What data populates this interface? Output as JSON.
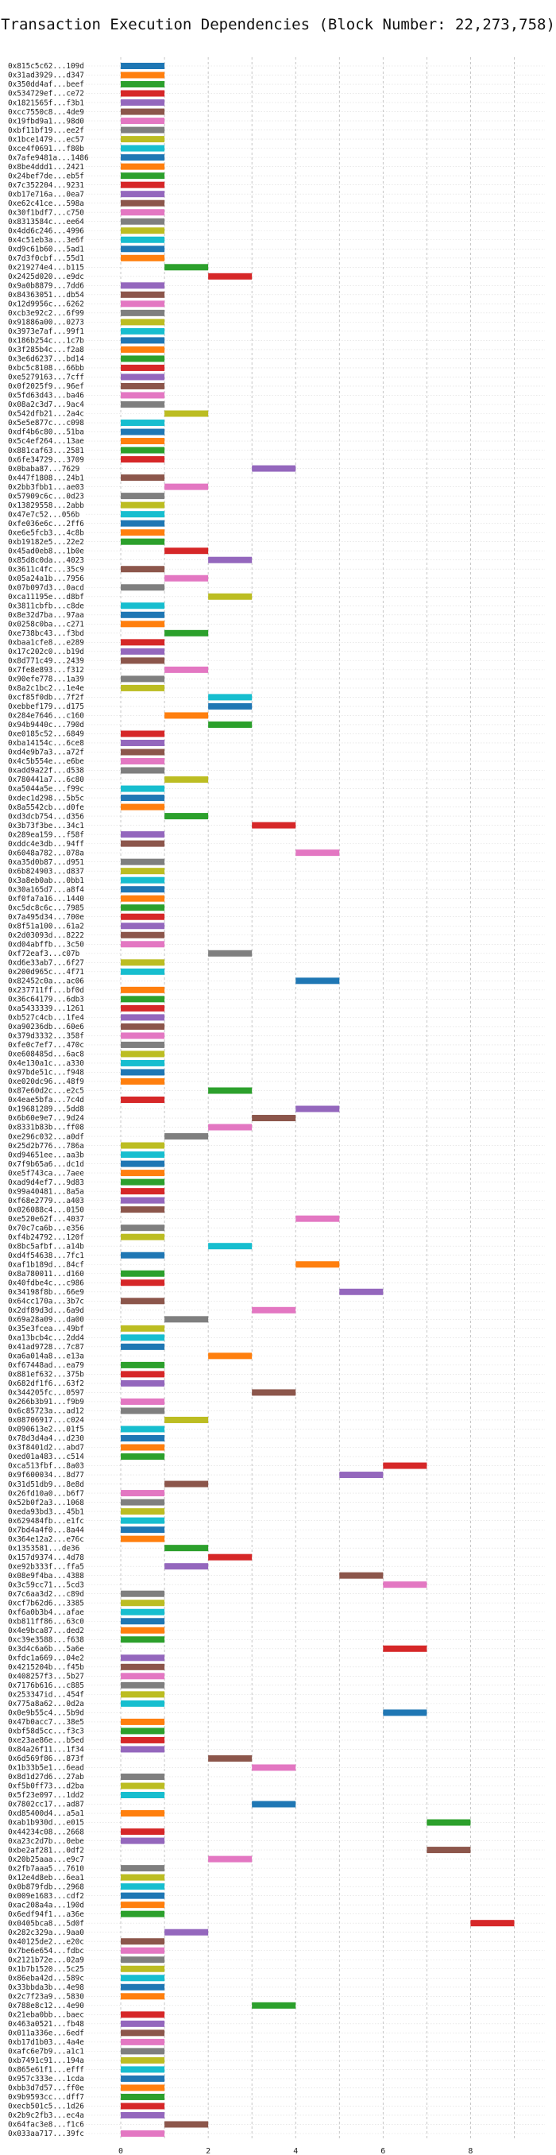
{
  "chart_data": {
    "type": "bar",
    "orientation": "horizontal",
    "title": "Transaction Execution Dependencies (Block Number: 22,273,758)",
    "xlabel": "",
    "ylabel": "",
    "xlim": [
      -0.8,
      9.7
    ],
    "xticks": [
      0,
      2,
      4,
      6,
      8
    ],
    "grid": true,
    "bar_span": 1,
    "palette": [
      "#1f77b4",
      "#ff7f0e",
      "#2ca02c",
      "#d62728",
      "#9467bd",
      "#8c564b",
      "#e377c2",
      "#7f7f7f",
      "#bcbd22",
      "#17becf"
    ],
    "transactions": [
      {
        "label": "0x815c5c62...109d",
        "start": 0
      },
      {
        "label": "0x31ad3929...d347",
        "start": 0
      },
      {
        "label": "0x350dd4af...beef",
        "start": 0
      },
      {
        "label": "0x534729ef...ce72",
        "start": 0
      },
      {
        "label": "0x1821565f...f3b1",
        "start": 0
      },
      {
        "label": "0xcc7550c8...4de9",
        "start": 0
      },
      {
        "label": "0x19fbd9a1...98d0",
        "start": 0
      },
      {
        "label": "0xbf11bf19...ee2f",
        "start": 0
      },
      {
        "label": "0x1bce1479...ec57",
        "start": 0
      },
      {
        "label": "0xce4f0691...f80b",
        "start": 0
      },
      {
        "label": "0x7afe9481a...1486",
        "start": 0
      },
      {
        "label": "0x8be4ddd1...2421",
        "start": 0
      },
      {
        "label": "0x24bef7de...eb5f",
        "start": 0
      },
      {
        "label": "0x7c352204...9231",
        "start": 0
      },
      {
        "label": "0xb17e716a...0ea7",
        "start": 0
      },
      {
        "label": "0xe62c41ce...598a",
        "start": 0
      },
      {
        "label": "0x30f1bdf7...c750",
        "start": 0
      },
      {
        "label": "0x8313584c...ee64",
        "start": 0
      },
      {
        "label": "0x4dd6c246...4996",
        "start": 0
      },
      {
        "label": "0x4c51eb3a...3e6f",
        "start": 0
      },
      {
        "label": "0xd9c61b60...5ad1",
        "start": 0
      },
      {
        "label": "0x7d3f0cbf...55d1",
        "start": 0
      },
      {
        "label": "0x219274e4...b115",
        "start": 1
      },
      {
        "label": "0x2425d020...e9dc",
        "start": 2
      },
      {
        "label": "0x9a0b8879...7dd6",
        "start": 0
      },
      {
        "label": "0x84363051...db54",
        "start": 0
      },
      {
        "label": "0x12d9956c...6262",
        "start": 0
      },
      {
        "label": "0xcb3e92c2...6f99",
        "start": 0
      },
      {
        "label": "0x91886a00...0273",
        "start": 0
      },
      {
        "label": "0x3973e7af...99f1",
        "start": 0
      },
      {
        "label": "0x186b254c...1c7b",
        "start": 0
      },
      {
        "label": "0x3f285b4c...f2a8",
        "start": 0
      },
      {
        "label": "0x3e6d6237...bd14",
        "start": 0
      },
      {
        "label": "0xbc5c8108...66bb",
        "start": 0
      },
      {
        "label": "0xe5279163...7cff",
        "start": 0
      },
      {
        "label": "0x0f2025f9...96ef",
        "start": 0
      },
      {
        "label": "0x5fd63d43...ba46",
        "start": 0
      },
      {
        "label": "0x08a2c3d7...9ac4",
        "start": 0
      },
      {
        "label": "0x542dfb21...2a4c",
        "start": 1
      },
      {
        "label": "0x5e5e877c...c098",
        "start": 0
      },
      {
        "label": "0xdf4b6c80...51ba",
        "start": 0
      },
      {
        "label": "0x5c4ef264...13ae",
        "start": 0
      },
      {
        "label": "0x881caf63...2581",
        "start": 0
      },
      {
        "label": "0x6fe34729...3709",
        "start": 0
      },
      {
        "label": "0x0baba87...7629",
        "start": 3
      },
      {
        "label": "0x447f1808...24b1",
        "start": 0
      },
      {
        "label": "0x2bb3fbb1...ae03",
        "start": 1
      },
      {
        "label": "0x57909c6c...0d23",
        "start": 0
      },
      {
        "label": "0x13829558...2abb",
        "start": 0
      },
      {
        "label": "0x47e7c52...056b",
        "start": 0
      },
      {
        "label": "0xfe036e6c...2ff6",
        "start": 0
      },
      {
        "label": "0xe6e5fcb3...4c8b",
        "start": 0
      },
      {
        "label": "0xb19182e5...22e2",
        "start": 0
      },
      {
        "label": "0x45ad0eb8...1b0e",
        "start": 1
      },
      {
        "label": "0x85d8c0da...4023",
        "start": 2
      },
      {
        "label": "0x3611c4fc...35c9",
        "start": 0
      },
      {
        "label": "0x05a24a1b...7956",
        "start": 1
      },
      {
        "label": "0x07b097d3...0acd",
        "start": 0
      },
      {
        "label": "0xca11195e...d8bf",
        "start": 2
      },
      {
        "label": "0x3811cbfb...c8de",
        "start": 0
      },
      {
        "label": "0x8e32d7ba...97aa",
        "start": 0
      },
      {
        "label": "0x0258c0ba...c271",
        "start": 0
      },
      {
        "label": "0xe738bc43...f3bd",
        "start": 1
      },
      {
        "label": "0xbaa1cfe8...e289",
        "start": 0
      },
      {
        "label": "0x17c202c0...b19d",
        "start": 0
      },
      {
        "label": "0x8d771c49...2439",
        "start": 0
      },
      {
        "label": "0x7fe8e893...f312",
        "start": 1
      },
      {
        "label": "0x90efe778...1a39",
        "start": 0
      },
      {
        "label": "0x8a2c1bc2...1e4e",
        "start": 0
      },
      {
        "label": "0xcf85f0db...7f2f",
        "start": 2
      },
      {
        "label": "0xebbef179...d175",
        "start": 2
      },
      {
        "label": "0x284e7646...c160",
        "start": 1
      },
      {
        "label": "0x94b9440c...790d",
        "start": 2
      },
      {
        "label": "0xe0185c52...6849",
        "start": 0
      },
      {
        "label": "0xba14154c...6ce8",
        "start": 0
      },
      {
        "label": "0xd4e9b7a3...a72f",
        "start": 0
      },
      {
        "label": "0x4c5b554e...e6be",
        "start": 0
      },
      {
        "label": "0xadd9a22f...d538",
        "start": 0
      },
      {
        "label": "0x780441a7...6c80",
        "start": 1
      },
      {
        "label": "0xa5044a5e...f99c",
        "start": 0
      },
      {
        "label": "0xdec1d298...5b5c",
        "start": 0
      },
      {
        "label": "0x8a5542cb...d0fe",
        "start": 0
      },
      {
        "label": "0xd3dcb754...d356",
        "start": 1
      },
      {
        "label": "0x3b73f3be...34c1",
        "start": 3
      },
      {
        "label": "0x289ea159...f58f",
        "start": 0
      },
      {
        "label": "0xddc4e3db...94ff",
        "start": 0
      },
      {
        "label": "0x6048a782...078a",
        "start": 4
      },
      {
        "label": "0xa35d0b87...d951",
        "start": 0
      },
      {
        "label": "0x6b824903...d837",
        "start": 0
      },
      {
        "label": "0x3a8eb0ab...0bb1",
        "start": 0
      },
      {
        "label": "0x30a165d7...a8f4",
        "start": 0
      },
      {
        "label": "0xf0fa7a16...1440",
        "start": 0
      },
      {
        "label": "0xc5dc8c6c...7985",
        "start": 0
      },
      {
        "label": "0x7a495d34...700e",
        "start": 0
      },
      {
        "label": "0x8f51a100...61a2",
        "start": 0
      },
      {
        "label": "0x2d03093d...8222",
        "start": 0
      },
      {
        "label": "0xd04abffb...3c50",
        "start": 0
      },
      {
        "label": "0xf72eaf3...c07b",
        "start": 2
      },
      {
        "label": "0xd6e33ab7...6f27",
        "start": 0
      },
      {
        "label": "0x200d965c...4f71",
        "start": 0
      },
      {
        "label": "0x82452c0a...ac06",
        "start": 4
      },
      {
        "label": "0x237711ff...bf0d",
        "start": 0
      },
      {
        "label": "0x36c64179...6db3",
        "start": 0
      },
      {
        "label": "0xa5433339...1261",
        "start": 0
      },
      {
        "label": "0xb527c4cb...1fe4",
        "start": 0
      },
      {
        "label": "0xa90236db...60e6",
        "start": 0
      },
      {
        "label": "0x379d3332...358f",
        "start": 0
      },
      {
        "label": "0xfe0c7ef7...470c",
        "start": 0
      },
      {
        "label": "0xe608485d...6ac8",
        "start": 0
      },
      {
        "label": "0x4e130a1c...a330",
        "start": 0
      },
      {
        "label": "0x97bde51c...f948",
        "start": 0
      },
      {
        "label": "0xe020dc96...48f9",
        "start": 0
      },
      {
        "label": "0x87e60d2c...e2c5",
        "start": 2
      },
      {
        "label": "0x4eae5bfa...7c4d",
        "start": 0
      },
      {
        "label": "0x19681289...5dd8",
        "start": 4
      },
      {
        "label": "0x6b60e9e7...9d24",
        "start": 3
      },
      {
        "label": "0x8331b83b...ff08",
        "start": 2
      },
      {
        "label": "0xe296c032...a0df",
        "start": 1
      },
      {
        "label": "0x25d2b776...786a",
        "start": 0
      },
      {
        "label": "0xd94651ee...aa3b",
        "start": 0
      },
      {
        "label": "0x7f9b65a6...dc1d",
        "start": 0
      },
      {
        "label": "0xe5f743ca...7aee",
        "start": 0
      },
      {
        "label": "0xad9d4ef7...9d83",
        "start": 0
      },
      {
        "label": "0x99a40481...8a5a",
        "start": 0
      },
      {
        "label": "0xf68e2779...a403",
        "start": 0
      },
      {
        "label": "0x026088c4...0150",
        "start": 0
      },
      {
        "label": "0xe520e62f...4037",
        "start": 4
      },
      {
        "label": "0x70c7ca6b...e356",
        "start": 0
      },
      {
        "label": "0xf4b24792...120f",
        "start": 0
      },
      {
        "label": "0x8bc5afbf...a14b",
        "start": 2
      },
      {
        "label": "0xd4f54638...7fc1",
        "start": 0
      },
      {
        "label": "0xaf1b189d...84cf",
        "start": 4
      },
      {
        "label": "0x8a780011...d160",
        "start": 0
      },
      {
        "label": "0x40fdbe4c...c986",
        "start": 0
      },
      {
        "label": "0x34198f8b...66e9",
        "start": 5
      },
      {
        "label": "0x64cc170a...3b7c",
        "start": 0
      },
      {
        "label": "0x2df89d3d...6a9d",
        "start": 3
      },
      {
        "label": "0x69a28a09...da00",
        "start": 1
      },
      {
        "label": "0x35e3fcea...49bf",
        "start": 0
      },
      {
        "label": "0xa13bcb4c...2dd4",
        "start": 0
      },
      {
        "label": "0x41ad9728...7c87",
        "start": 0
      },
      {
        "label": "0xa6a014a8...e13a",
        "start": 2
      },
      {
        "label": "0xf67448ad...ea79",
        "start": 0
      },
      {
        "label": "0x881ef632...375b",
        "start": 0
      },
      {
        "label": "0x682df1f6...63f2",
        "start": 0
      },
      {
        "label": "0x344205fc...0597",
        "start": 3
      },
      {
        "label": "0x266b3b91...f9b9",
        "start": 0
      },
      {
        "label": "0x6c85723a...ad12",
        "start": 0
      },
      {
        "label": "0x08706917...c024",
        "start": 1
      },
      {
        "label": "0x090613e2...01f5",
        "start": 0
      },
      {
        "label": "0x78d3d4a4...d230",
        "start": 0
      },
      {
        "label": "0x3f8401d2...abd7",
        "start": 0
      },
      {
        "label": "0xed01a483...c514",
        "start": 0
      },
      {
        "label": "0xca513fbf...8a03",
        "start": 6
      },
      {
        "label": "0x9f600034...8d77",
        "start": 5
      },
      {
        "label": "0x31d51db9...8e8d",
        "start": 1
      },
      {
        "label": "0x26fd10a0...b6f7",
        "start": 0
      },
      {
        "label": "0x52b0f2a3...1068",
        "start": 0
      },
      {
        "label": "0xeda93bd3...45b1",
        "start": 0
      },
      {
        "label": "0x629484fb...e1fc",
        "start": 0
      },
      {
        "label": "0x7bd4a4f0...8a44",
        "start": 0
      },
      {
        "label": "0x364e12a2...e76c",
        "start": 0
      },
      {
        "label": "0x1353581...de36",
        "start": 1
      },
      {
        "label": "0x157d9374...4d78",
        "start": 2
      },
      {
        "label": "0xe92b333f...ffa5",
        "start": 1
      },
      {
        "label": "0x08e9f4ba...4388",
        "start": 5
      },
      {
        "label": "0x3c59cc71...5cd3",
        "start": 6
      },
      {
        "label": "0x7c6aa3d2...c89d",
        "start": 0
      },
      {
        "label": "0xcf7b62d6...3385",
        "start": 0
      },
      {
        "label": "0xf6a0b3b4...afae",
        "start": 0
      },
      {
        "label": "0xb811ff86...63c0",
        "start": 0
      },
      {
        "label": "0x4e9bca87...ded2",
        "start": 0
      },
      {
        "label": "0xc39e3588...f638",
        "start": 0
      },
      {
        "label": "0x3d4c6a6b...5a6e",
        "start": 6
      },
      {
        "label": "0xfdc1a669...04e2",
        "start": 0
      },
      {
        "label": "0x4215204b...f45b",
        "start": 0
      },
      {
        "label": "0x408257f3...5b27",
        "start": 0
      },
      {
        "label": "0x7176b616...c885",
        "start": 0
      },
      {
        "label": "0x253347id...454f",
        "start": 0
      },
      {
        "label": "0x775a8a62...0d2a",
        "start": 0
      },
      {
        "label": "0x0e9b55c4...5b9d",
        "start": 6
      },
      {
        "label": "0x47b0acc7...38e5",
        "start": 0
      },
      {
        "label": "0xbf58d5cc...f3c3",
        "start": 0
      },
      {
        "label": "0xe23ae86e...b5ed",
        "start": 0
      },
      {
        "label": "0x84a26f11...1f34",
        "start": 0
      },
      {
        "label": "0x6d569f86...873f",
        "start": 2
      },
      {
        "label": "0x1b33b5e1...6ead",
        "start": 3
      },
      {
        "label": "0x8d1d27d6...27ab",
        "start": 0
      },
      {
        "label": "0xf5b0ff73...d2ba",
        "start": 0
      },
      {
        "label": "0x5f23e097...1dd2",
        "start": 0
      },
      {
        "label": "0x7802cc17...ad87",
        "start": 3
      },
      {
        "label": "0xd85400d4...a5a1",
        "start": 0
      },
      {
        "label": "0xab1b930d...e015",
        "start": 7
      },
      {
        "label": "0x44234c08...2668",
        "start": 0
      },
      {
        "label": "0xa23c2d7b...0ebe",
        "start": 0
      },
      {
        "label": "0xbe2af281...0df2",
        "start": 7
      },
      {
        "label": "0x20b25aaa...e9c7",
        "start": 2
      },
      {
        "label": "0x2fb7aaa5...7610",
        "start": 0
      },
      {
        "label": "0x12e4d8eb...6ea1",
        "start": 0
      },
      {
        "label": "0x0b879fdb...2968",
        "start": 0
      },
      {
        "label": "0x009e1683...cdf2",
        "start": 0
      },
      {
        "label": "0xac208a4a...190d",
        "start": 0
      },
      {
        "label": "0x6edf94f1...a36e",
        "start": 0
      },
      {
        "label": "0x0405bca8...5d0f",
        "start": 8
      },
      {
        "label": "0x282c329a...9aa0",
        "start": 1
      },
      {
        "label": "0x40125de2...e20c",
        "start": 0
      },
      {
        "label": "0x7be6e654...fdbc",
        "start": 0
      },
      {
        "label": "0x2121b72e...02a9",
        "start": 0
      },
      {
        "label": "0x1b7b1520...5c25",
        "start": 0
      },
      {
        "label": "0x86eba42d...589c",
        "start": 0
      },
      {
        "label": "0x33bbda3b...4e98",
        "start": 0
      },
      {
        "label": "0x2c7f23a9...5830",
        "start": 0
      },
      {
        "label": "0x788e8c12...4e90",
        "start": 3
      },
      {
        "label": "0x21eba0bb...baec",
        "start": 0
      },
      {
        "label": "0x463a0521...fb48",
        "start": 0
      },
      {
        "label": "0x011a336e...6edf",
        "start": 0
      },
      {
        "label": "0xb17d1b03...4a4e",
        "start": 0
      },
      {
        "label": "0xafc6e7b9...a1c1",
        "start": 0
      },
      {
        "label": "0xb7491c91...194a",
        "start": 0
      },
      {
        "label": "0x865e61f1...efff",
        "start": 0
      },
      {
        "label": "0x957c333e...1cda",
        "start": 0
      },
      {
        "label": "0xbb3d7d57...ff0e",
        "start": 0
      },
      {
        "label": "0x9b9593cc...dff7",
        "start": 0
      },
      {
        "label": "0xecb501c5...1d26",
        "start": 0
      },
      {
        "label": "0x2b9c2fb3...ec4a",
        "start": 0
      },
      {
        "label": "0x64fac3e8...f1c6",
        "start": 1
      },
      {
        "label": "0x033aa717...39fc",
        "start": 0
      }
    ]
  }
}
